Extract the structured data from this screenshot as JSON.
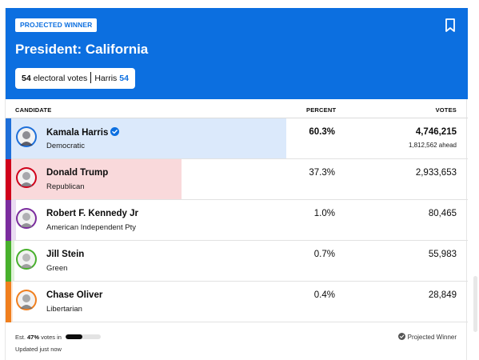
{
  "header": {
    "badge": "PROJECTED WINNER",
    "title": "President: California",
    "electoral_votes_num": "54",
    "electoral_votes_label": "electoral votes",
    "leader_name": "Harris",
    "leader_votes": "54",
    "accent_color": "#0c6fe0",
    "bookmark_icon": "bookmark-icon"
  },
  "columns": {
    "candidate": "CANDIDATE",
    "percent": "PERCENT",
    "votes": "VOTES"
  },
  "candidates": [
    {
      "name": "Kamala Harris",
      "party": "Democratic",
      "percent": "60.3%",
      "votes": "4,746,215",
      "ahead": "1,812,562 ahead",
      "share": 0.603,
      "stripe_color": "#1e6fd9",
      "fill_color": "#dbe9fb",
      "winner": true
    },
    {
      "name": "Donald Trump",
      "party": "Republican",
      "percent": "37.3%",
      "votes": "2,933,653",
      "share": 0.373,
      "stripe_color": "#d0021b",
      "fill_color": "#f9d9db",
      "winner": false
    },
    {
      "name": "Robert F. Kennedy Jr",
      "party": "American Independent Pty",
      "percent": "1.0%",
      "votes": "80,465",
      "share": 0.01,
      "stripe_color": "#7b2c9e",
      "fill_color": "#eadcf2",
      "winner": false
    },
    {
      "name": "Jill Stein",
      "party": "Green",
      "percent": "0.7%",
      "votes": "55,983",
      "share": 0.007,
      "stripe_color": "#48b02c",
      "fill_color": "#dff2d8",
      "winner": false
    },
    {
      "name": "Chase Oliver",
      "party": "Libertarian",
      "percent": "0.4%",
      "votes": "28,849",
      "share": 0.004,
      "stripe_color": "#f07f1e",
      "fill_color": "#fde6d2",
      "winner": false
    }
  ],
  "footer": {
    "est_prefix": "Est.",
    "est_percent": "47%",
    "est_suffix": "votes in",
    "est_fraction": 0.47,
    "updated": "Updated just now",
    "legend": "Projected Winner"
  }
}
